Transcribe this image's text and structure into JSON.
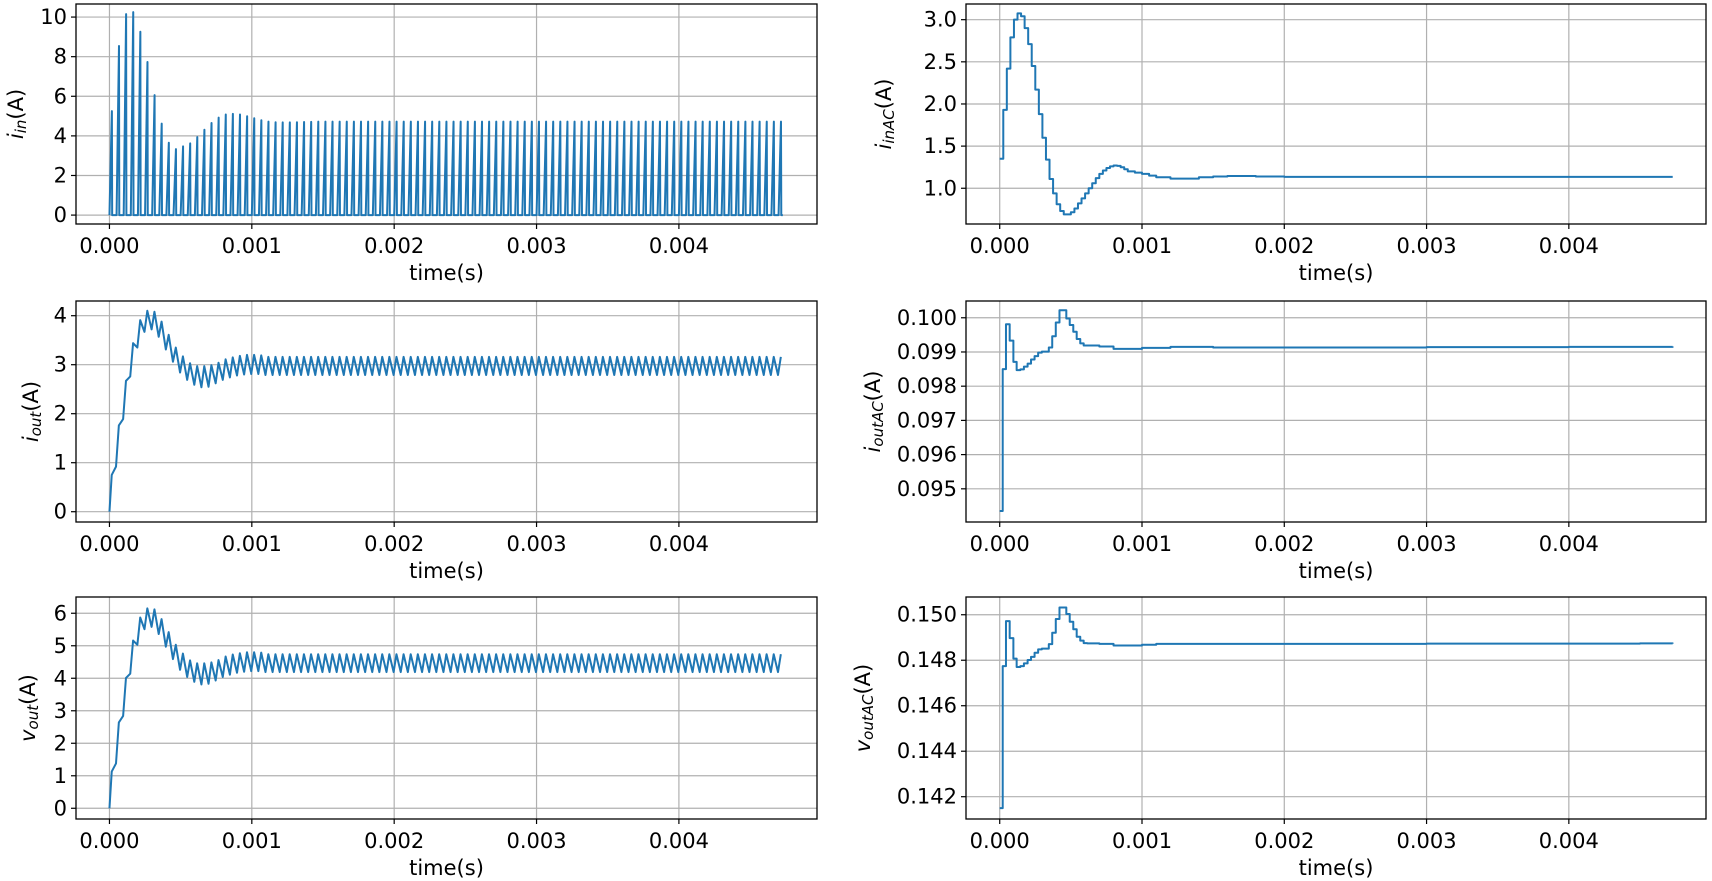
{
  "line_color": "#1f77b4",
  "grid_color": "#b0b0b0",
  "chart_data": [
    {
      "type": "line",
      "ylabel": {
        "main": "i",
        "sub": "in",
        "unit": "(A)"
      },
      "xlabel": "time(s)",
      "grid": true,
      "xlim": [
        -0.000235,
        0.00497
      ],
      "ylim": [
        -0.45,
        10.66
      ],
      "xticks": [
        0,
        0.001,
        0.002,
        0.003,
        0.004
      ],
      "xtick_labels": [
        "0.000",
        "0.001",
        "0.002",
        "0.003",
        "0.004"
      ],
      "yticks": [
        0,
        2,
        4,
        6,
        8,
        10
      ],
      "ytick_labels": [
        "0",
        "2",
        "4",
        "6",
        "8",
        "10"
      ],
      "series": {
        "style": "pulse",
        "pulse_period": 5e-05,
        "t_end": 0.00473,
        "peaks": [
          5.25,
          8.54,
          10.15,
          10.25,
          9.26,
          7.73,
          6.06,
          4.62,
          3.65,
          3.33,
          3.47,
          3.62,
          3.94,
          4.31,
          4.65,
          4.92,
          5.08,
          5.11,
          5.08,
          4.99,
          4.89,
          4.79,
          4.72,
          4.69,
          4.68,
          4.68,
          4.69,
          4.7,
          4.71,
          4.72
        ],
        "steady_peak": 4.72
      }
    },
    {
      "type": "line",
      "ylabel": {
        "main": "i",
        "sub": "inAC",
        "unit": "(A)"
      },
      "xlabel": "time(s)",
      "grid": true,
      "xlim": [
        -0.000237,
        0.004964
      ],
      "ylim": [
        0.576,
        3.186
      ],
      "xticks": [
        0,
        0.001,
        0.002,
        0.003,
        0.004
      ],
      "xtick_labels": [
        "0.000",
        "0.001",
        "0.002",
        "0.003",
        "0.004"
      ],
      "yticks": [
        1.0,
        1.5,
        2.0,
        2.5,
        3.0
      ],
      "ytick_labels": [
        "1.0",
        "1.5",
        "2.0",
        "2.5",
        "3.0"
      ],
      "series": {
        "style": "steps",
        "points": [
          [
            0,
            1.35
          ],
          [
            2.5e-05,
            1.93
          ],
          [
            5e-05,
            2.42
          ],
          [
            7.5e-05,
            2.79
          ],
          [
            0.0001,
            3.0
          ],
          [
            0.000125,
            3.075
          ],
          [
            0.00015,
            3.04
          ],
          [
            0.000175,
            2.9
          ],
          [
            0.0002,
            2.71
          ],
          [
            0.000225,
            2.45
          ],
          [
            0.00025,
            2.17
          ],
          [
            0.000275,
            1.88
          ],
          [
            0.0003,
            1.6
          ],
          [
            0.000325,
            1.34
          ],
          [
            0.00035,
            1.11
          ],
          [
            0.000375,
            0.94
          ],
          [
            0.0004,
            0.81
          ],
          [
            0.000425,
            0.73
          ],
          [
            0.00045,
            0.69
          ],
          [
            0.000475,
            0.69
          ],
          [
            0.0005,
            0.715
          ],
          [
            0.000525,
            0.76
          ],
          [
            0.00055,
            0.82
          ],
          [
            0.000575,
            0.88
          ],
          [
            0.0006,
            0.94
          ],
          [
            0.000625,
            1.0
          ],
          [
            0.00065,
            1.06
          ],
          [
            0.000675,
            1.12
          ],
          [
            0.0007,
            1.17
          ],
          [
            0.000725,
            1.21
          ],
          [
            0.00075,
            1.24
          ],
          [
            0.000775,
            1.26
          ],
          [
            0.0008,
            1.27
          ],
          [
            0.000825,
            1.265
          ],
          [
            0.00085,
            1.25
          ],
          [
            0.000875,
            1.225
          ],
          [
            0.0009,
            1.2
          ],
          [
            0.00095,
            1.185
          ],
          [
            0.001,
            1.17
          ],
          [
            0.00105,
            1.15
          ],
          [
            0.0011,
            1.13
          ],
          [
            0.0012,
            1.115
          ],
          [
            0.0013,
            1.115
          ],
          [
            0.0014,
            1.13
          ],
          [
            0.0015,
            1.14
          ],
          [
            0.0016,
            1.145
          ],
          [
            0.0018,
            1.14
          ],
          [
            0.002,
            1.135
          ],
          [
            0.00473,
            1.135
          ]
        ]
      }
    },
    {
      "type": "line",
      "ylabel": {
        "main": "i",
        "sub": "out",
        "unit": "(A)"
      },
      "xlabel": "time(s)",
      "grid": true,
      "xlim": [
        -0.000235,
        0.00497
      ],
      "ylim": [
        -0.21,
        4.3
      ],
      "xticks": [
        0,
        0.001,
        0.002,
        0.003,
        0.004
      ],
      "xtick_labels": [
        "0.000",
        "0.001",
        "0.002",
        "0.003",
        "0.004"
      ],
      "yticks": [
        0,
        1,
        2,
        3,
        4
      ],
      "ytick_labels": [
        "0",
        "1",
        "2",
        "3",
        "4"
      ],
      "series": {
        "style": "ripple",
        "t_end": 0.00473,
        "ripple_period": 5e-05,
        "steady_peak": 3.16,
        "steady_trough": 2.79,
        "points": [
          [
            0,
            0
          ],
          [
            1.6e-05,
            0.75
          ],
          [
            4.6e-05,
            0.92
          ],
          [
            6.6e-05,
            1.76
          ],
          [
            9.6e-05,
            1.89
          ],
          [
            0.000116,
            2.67
          ],
          [
            0.000146,
            2.76
          ],
          [
            0.000166,
            3.44
          ],
          [
            0.000196,
            3.35
          ],
          [
            0.000216,
            3.91
          ],
          [
            0.000246,
            3.67
          ],
          [
            0.000266,
            4.1
          ],
          [
            0.000296,
            3.72
          ],
          [
            0.000316,
            4.08
          ],
          [
            0.000346,
            3.57
          ],
          [
            0.000366,
            3.88
          ],
          [
            0.000396,
            3.31
          ],
          [
            0.000416,
            3.61
          ],
          [
            0.000446,
            3.06
          ],
          [
            0.000466,
            3.35
          ],
          [
            0.000496,
            2.84
          ],
          [
            0.000516,
            3.17
          ],
          [
            0.000546,
            2.69
          ],
          [
            0.000566,
            3.03
          ],
          [
            0.000596,
            2.59
          ],
          [
            0.000616,
            2.97
          ],
          [
            0.000646,
            2.54
          ],
          [
            0.000666,
            2.97
          ],
          [
            0.000696,
            2.55
          ],
          [
            0.000716,
            2.99
          ],
          [
            0.000746,
            2.62
          ],
          [
            0.000766,
            3.04
          ],
          [
            0.000796,
            2.69
          ],
          [
            0.000816,
            3.11
          ],
          [
            0.000846,
            2.74
          ],
          [
            0.000866,
            3.15
          ],
          [
            0.000896,
            2.78
          ],
          [
            0.000916,
            3.18
          ],
          [
            0.000946,
            2.8
          ],
          [
            0.000966,
            3.2
          ],
          [
            0.000996,
            2.81
          ],
          [
            0.001016,
            3.2
          ],
          [
            0.001046,
            2.81
          ],
          [
            0.001066,
            3.19
          ]
        ]
      }
    },
    {
      "type": "line",
      "ylabel": {
        "main": "i",
        "sub": "outAC",
        "unit": "(A)"
      },
      "xlabel": "time(s)",
      "grid": true,
      "xlim": [
        -0.000237,
        0.004964
      ],
      "ylim": [
        0.09403,
        0.10049
      ],
      "xticks": [
        0,
        0.001,
        0.002,
        0.003,
        0.004
      ],
      "xtick_labels": [
        "0.000",
        "0.001",
        "0.002",
        "0.003",
        "0.004"
      ],
      "yticks": [
        0.095,
        0.096,
        0.097,
        0.098,
        0.099,
        0.1
      ],
      "ytick_labels": [
        "0.095",
        "0.096",
        "0.097",
        "0.098",
        "0.099",
        "0.100"
      ],
      "series": {
        "style": "steps",
        "points": [
          [
            0,
            0.09435
          ],
          [
            2.1e-05,
            0.0985
          ],
          [
            4.4e-05,
            0.09981
          ],
          [
            7e-05,
            0.09933
          ],
          [
            9.6e-05,
            0.09871
          ],
          [
            0.000119,
            0.09847
          ],
          [
            0.000145,
            0.09849
          ],
          [
            0.00017,
            0.09857
          ],
          [
            0.000196,
            0.09866
          ],
          [
            0.00022,
            0.09878
          ],
          [
            0.000245,
            0.09888
          ],
          [
            0.00027,
            0.09898
          ],
          [
            0.000296,
            0.09901
          ],
          [
            0.000345,
            0.09913
          ],
          [
            0.000369,
            0.09946
          ],
          [
            0.000394,
            0.09986
          ],
          [
            0.00042,
            0.10022
          ],
          [
            0.000468,
            0.09998
          ],
          [
            0.000492,
            0.09979
          ],
          [
            0.000517,
            0.09959
          ],
          [
            0.000541,
            0.09938
          ],
          [
            0.000566,
            0.09925
          ],
          [
            0.00059,
            0.09919
          ],
          [
            0.0007,
            0.09916
          ],
          [
            0.0008,
            0.09909
          ],
          [
            0.0009,
            0.09909
          ],
          [
            0.001,
            0.09912
          ],
          [
            0.0012,
            0.09915
          ],
          [
            0.0015,
            0.09913
          ],
          [
            0.002,
            0.09913
          ],
          [
            0.003,
            0.09914
          ],
          [
            0.004,
            0.09915
          ],
          [
            0.00473,
            0.09916
          ]
        ]
      }
    },
    {
      "type": "line",
      "ylabel": {
        "main": "v",
        "sub": "out",
        "unit": "(A)"
      },
      "xlabel": "time(s)",
      "grid": true,
      "xlim": [
        -0.000235,
        0.00497
      ],
      "ylim": [
        -0.33,
        6.5
      ],
      "xticks": [
        0,
        0.001,
        0.002,
        0.003,
        0.004
      ],
      "xtick_labels": [
        "0.000",
        "0.001",
        "0.002",
        "0.003",
        "0.004"
      ],
      "yticks": [
        0,
        1,
        2,
        3,
        4,
        5,
        6
      ],
      "ytick_labels": [
        "0",
        "1",
        "2",
        "3",
        "4",
        "5",
        "6"
      ],
      "series": {
        "style": "ripple",
        "t_end": 0.00473,
        "ripple_period": 5e-05,
        "steady_peak": 4.74,
        "steady_trough": 4.19,
        "points": [
          [
            0,
            0
          ],
          [
            1.6e-05,
            1.13
          ],
          [
            4.6e-05,
            1.38
          ],
          [
            6.6e-05,
            2.64
          ],
          [
            9.6e-05,
            2.84
          ],
          [
            0.000116,
            4.01
          ],
          [
            0.000146,
            4.14
          ],
          [
            0.000166,
            5.16
          ],
          [
            0.000196,
            5.03
          ],
          [
            0.000216,
            5.87
          ],
          [
            0.000246,
            5.51
          ],
          [
            0.000266,
            6.15
          ],
          [
            0.000296,
            5.58
          ],
          [
            0.000316,
            6.12
          ],
          [
            0.000346,
            5.36
          ],
          [
            0.000366,
            5.82
          ],
          [
            0.000396,
            4.97
          ],
          [
            0.000416,
            5.42
          ],
          [
            0.000446,
            4.59
          ],
          [
            0.000466,
            5.03
          ],
          [
            0.000496,
            4.26
          ],
          [
            0.000516,
            4.76
          ],
          [
            0.000546,
            4.04
          ],
          [
            0.000566,
            4.55
          ],
          [
            0.000596,
            3.89
          ],
          [
            0.000616,
            4.46
          ],
          [
            0.000646,
            3.81
          ],
          [
            0.000666,
            4.46
          ],
          [
            0.000696,
            3.83
          ],
          [
            0.000716,
            4.49
          ],
          [
            0.000746,
            3.93
          ],
          [
            0.000766,
            4.56
          ],
          [
            0.000796,
            4.04
          ],
          [
            0.000816,
            4.67
          ],
          [
            0.000846,
            4.11
          ],
          [
            0.000866,
            4.73
          ],
          [
            0.000896,
            4.17
          ],
          [
            0.000916,
            4.77
          ],
          [
            0.000946,
            4.2
          ],
          [
            0.000966,
            4.8
          ],
          [
            0.000996,
            4.22
          ],
          [
            0.001016,
            4.8
          ],
          [
            0.001046,
            4.22
          ],
          [
            0.001066,
            4.79
          ]
        ]
      }
    },
    {
      "type": "line",
      "ylabel": {
        "main": "v",
        "sub": "outAC",
        "unit": "(A)"
      },
      "xlabel": "time(s)",
      "grid": true,
      "xlim": [
        -0.000237,
        0.004964
      ],
      "ylim": [
        0.14102,
        0.15078
      ],
      "xticks": [
        0,
        0.001,
        0.002,
        0.003,
        0.004
      ],
      "xtick_labels": [
        "0.000",
        "0.001",
        "0.002",
        "0.003",
        "0.004"
      ],
      "yticks": [
        0.142,
        0.144,
        0.146,
        0.148,
        0.15
      ],
      "ytick_labels": [
        "0.142",
        "0.144",
        "0.146",
        "0.148",
        "0.150"
      ],
      "series": {
        "style": "steps",
        "points": [
          [
            0,
            0.1415
          ],
          [
            2.1e-05,
            0.14774
          ],
          [
            4.4e-05,
            0.14972
          ],
          [
            7e-05,
            0.14897
          ],
          [
            9.6e-05,
            0.14807
          ],
          [
            0.000119,
            0.1477
          ],
          [
            0.000145,
            0.14774
          ],
          [
            0.00017,
            0.14786
          ],
          [
            0.000196,
            0.14801
          ],
          [
            0.00022,
            0.14815
          ],
          [
            0.000245,
            0.14833
          ],
          [
            0.00027,
            0.14848
          ],
          [
            0.000296,
            0.14851
          ],
          [
            0.000345,
            0.14871
          ],
          [
            0.000369,
            0.14921
          ],
          [
            0.000394,
            0.14981
          ],
          [
            0.00042,
            0.15032
          ],
          [
            0.000468,
            0.15003
          ],
          [
            0.000492,
            0.14969
          ],
          [
            0.000517,
            0.14936
          ],
          [
            0.000541,
            0.14903
          ],
          [
            0.000566,
            0.14886
          ],
          [
            0.00059,
            0.14875
          ],
          [
            0.000615,
            0.14874
          ],
          [
            0.0007,
            0.14872
          ],
          [
            0.0008,
            0.14865
          ],
          [
            0.0009,
            0.14865
          ],
          [
            0.001,
            0.14868
          ],
          [
            0.0011,
            0.14872
          ],
          [
            0.0015,
            0.14872
          ],
          [
            0.002,
            0.14872
          ],
          [
            0.003,
            0.14873
          ],
          [
            0.0045,
            0.14874
          ],
          [
            0.00473,
            0.14873
          ]
        ]
      }
    }
  ]
}
